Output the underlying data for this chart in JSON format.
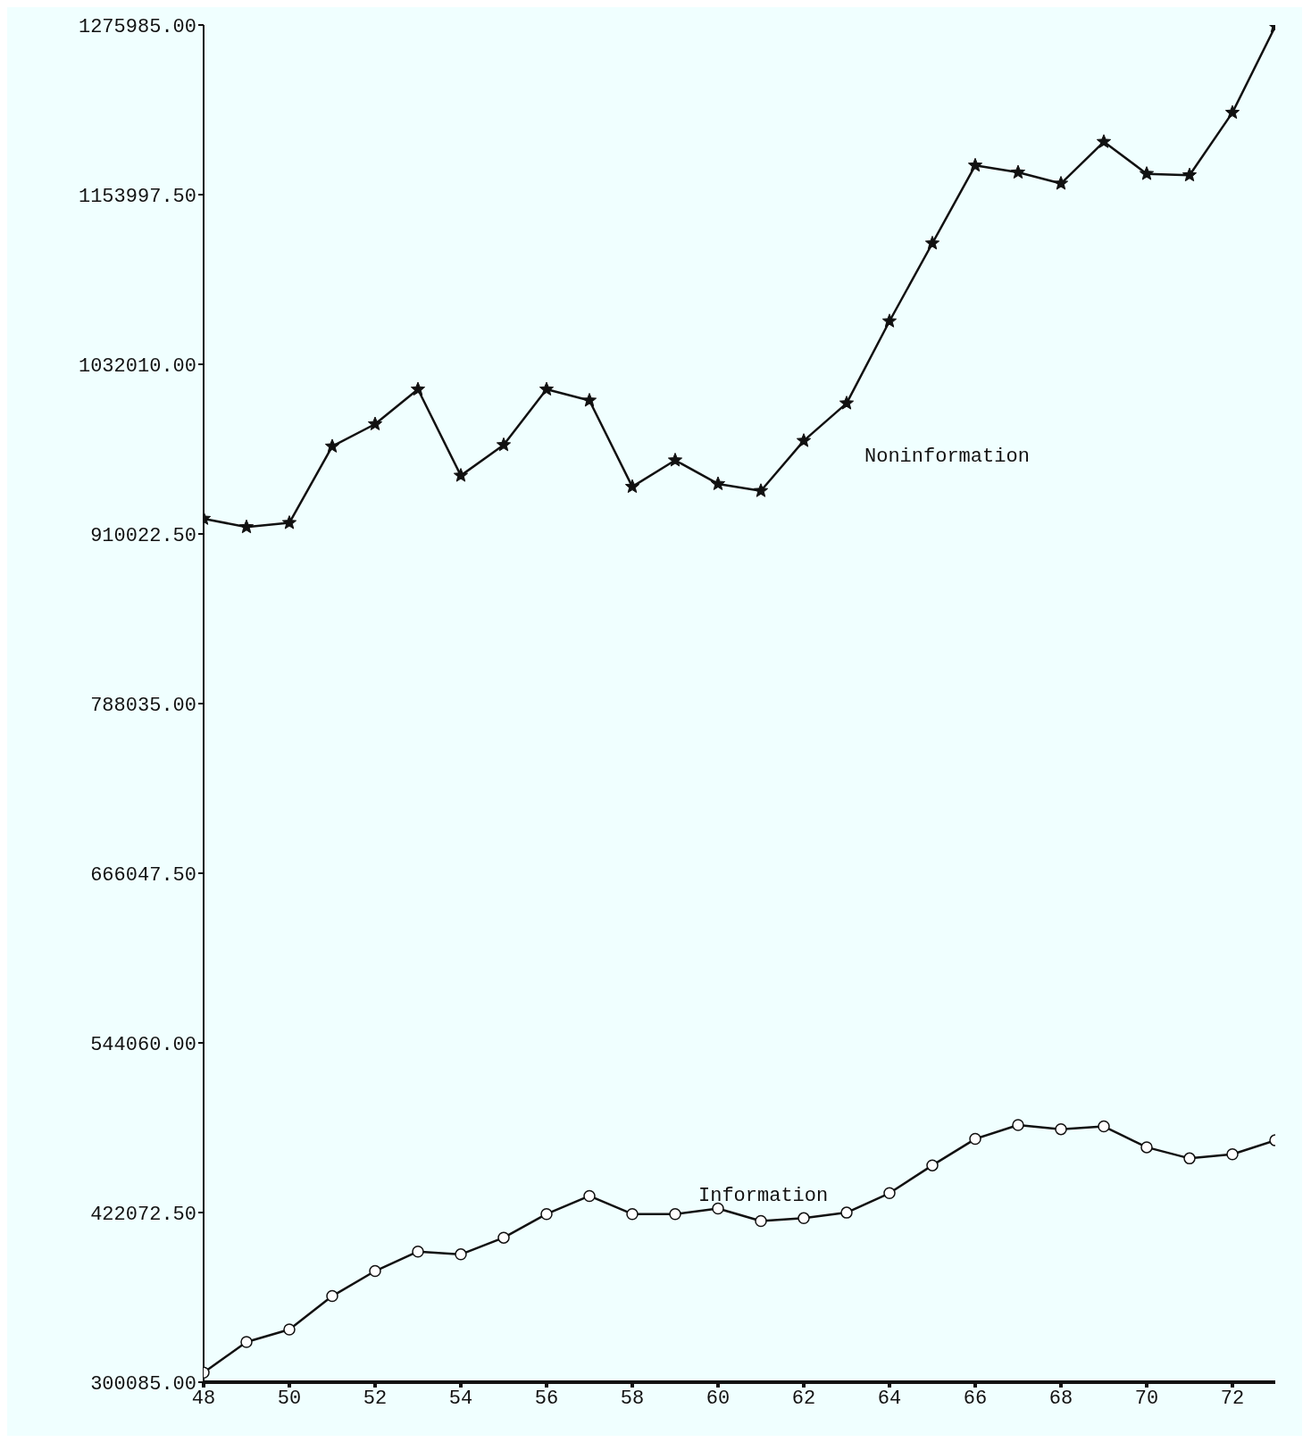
{
  "chart_data": {
    "type": "line",
    "x": [
      48,
      49,
      50,
      51,
      52,
      53,
      54,
      55,
      56,
      57,
      58,
      59,
      60,
      61,
      62,
      63,
      64,
      65,
      66,
      67,
      68,
      69,
      70,
      71,
      72,
      73
    ],
    "series": [
      {
        "name": "Noninformation",
        "color": "#111111",
        "marker": "star",
        "values": [
          921000,
          915000,
          918000,
          973000,
          989000,
          1014000,
          952000,
          974000,
          1014000,
          1006000,
          944000,
          963000,
          946000,
          941000,
          977000,
          1004000,
          1063000,
          1119000,
          1175000,
          1170000,
          1162000,
          1192000,
          1169000,
          1168000,
          1213000,
          1275000
        ]
      },
      {
        "name": "Information",
        "color": "#111111",
        "marker": "circle",
        "values": [
          307000,
          329000,
          338000,
          362000,
          380000,
          394000,
          392000,
          404000,
          421000,
          434000,
          421000,
          421000,
          425000,
          416000,
          418000,
          422000,
          436000,
          456000,
          475000,
          485000,
          482000,
          484000,
          469000,
          461000,
          464000,
          474000
        ]
      }
    ],
    "xlim": [
      48,
      73
    ],
    "xticks": [
      48,
      50,
      52,
      54,
      56,
      58,
      60,
      62,
      64,
      66,
      68,
      70,
      72
    ],
    "ylim": [
      300085,
      1275985
    ],
    "yticks": [
      {
        "value": 300085,
        "label": "300085.00"
      },
      {
        "value": 422072.5,
        "label": "422072.50"
      },
      {
        "value": 544060,
        "label": "544060.00"
      },
      {
        "value": 666047.5,
        "label": "666047.50"
      },
      {
        "value": 788035,
        "label": "788035.00"
      },
      {
        "value": 910022.5,
        "label": "910022.50"
      },
      {
        "value": 1032010,
        "label": "1032010.00"
      },
      {
        "value": 1153997.5,
        "label": "1153997.50"
      },
      {
        "value": 1275985,
        "label": "1275985.00"
      }
    ],
    "grid": false,
    "legend": false,
    "line_style": "solid"
  }
}
